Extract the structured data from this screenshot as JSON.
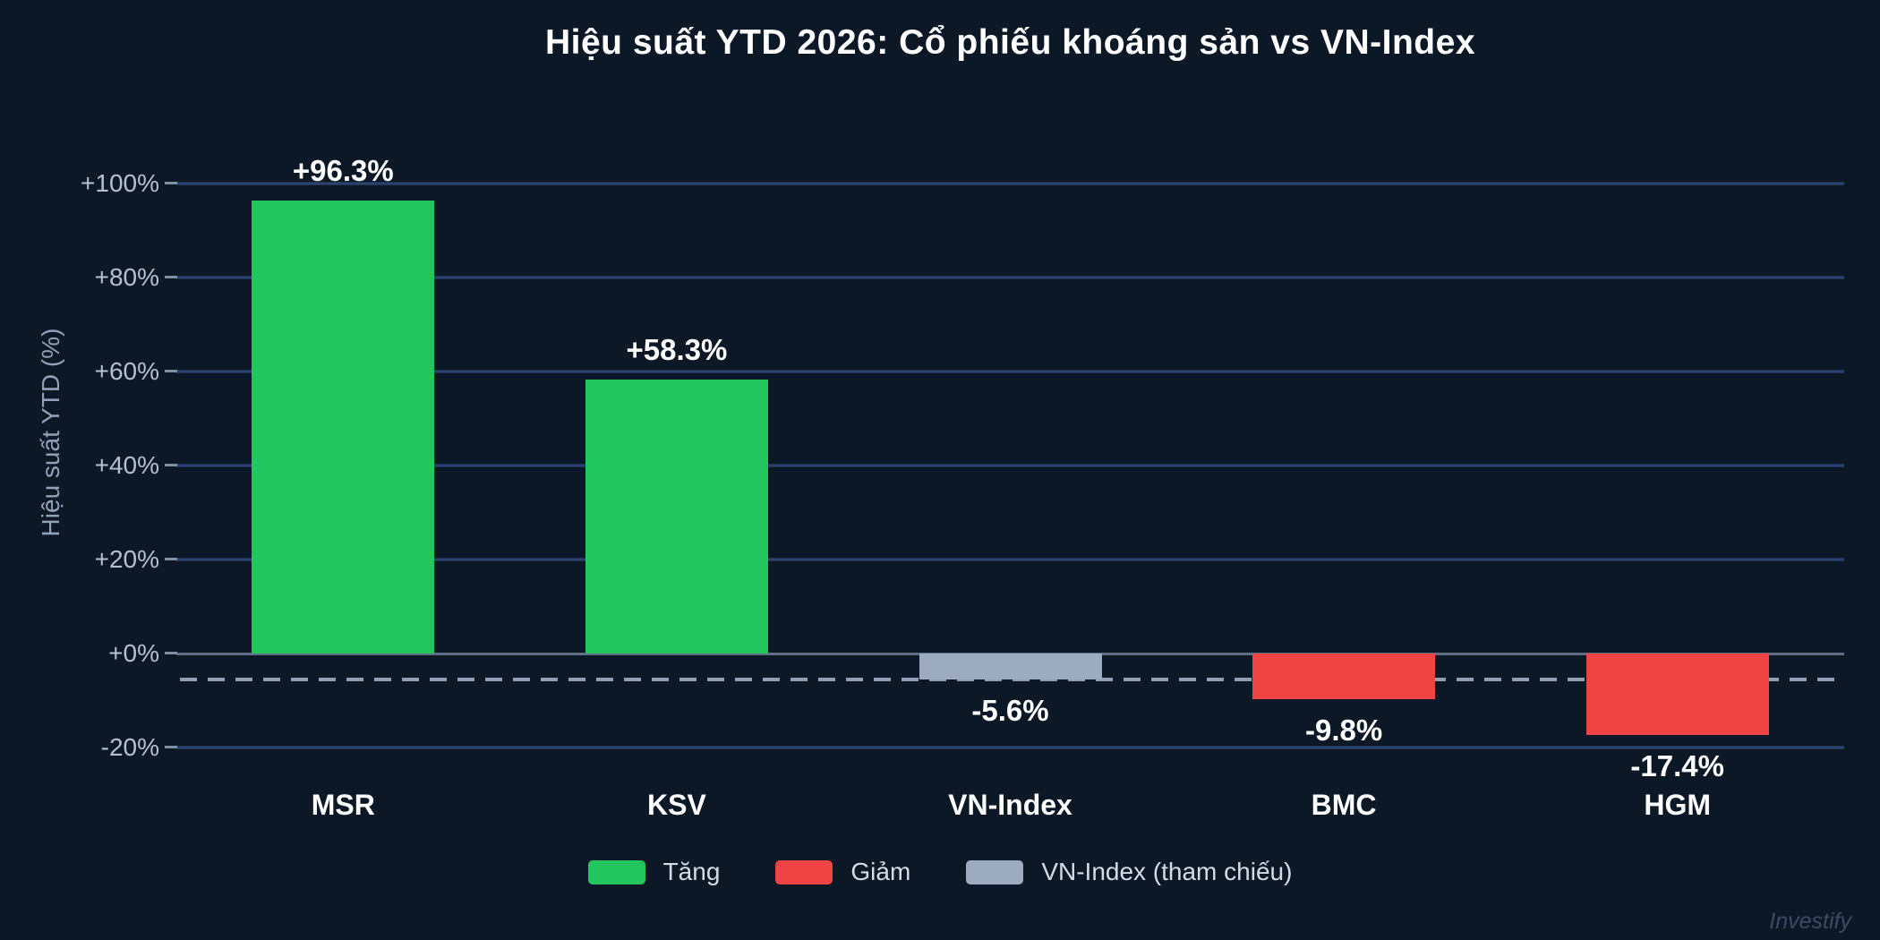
{
  "title": "Hiệu suất YTD 2026: Cổ phiếu khoáng sản vs VN-Index",
  "watermark": "Investify",
  "colors": {
    "background": "#0d1827",
    "up": "#22c55e",
    "down": "#ef4444",
    "reference": "#9dabbf",
    "grid": "#31487a",
    "zero_line": "#5d6e85",
    "dashed_line": "#8fa0b4",
    "tick_text": "#b3c0d4",
    "axis_title_text": "#90a1b8",
    "label_text": "#ffffff",
    "legend_text": "#d3dbe7",
    "watermark_text": "#3b4b61"
  },
  "chart_data": {
    "type": "bar",
    "title": "Hiệu suất YTD 2026: Cổ phiếu khoáng sản vs VN-Index",
    "xlabel": "",
    "ylabel": "Hiệu suất YTD (%)",
    "categories": [
      "MSR",
      "KSV",
      "VN-Index",
      "BMC",
      "HGM"
    ],
    "values": [
      96.3,
      58.3,
      -5.6,
      -9.8,
      -17.4
    ],
    "value_labels": [
      "+96.3%",
      "+58.3%",
      "-5.6%",
      "-9.8%",
      "-17.4%"
    ],
    "bar_roles": [
      "up",
      "up",
      "reference",
      "down",
      "down"
    ],
    "ylim": [
      -28,
      112
    ],
    "yticks": [
      {
        "value": 100,
        "label": "+100%"
      },
      {
        "value": 80,
        "label": "+80%"
      },
      {
        "value": 60,
        "label": "+60%"
      },
      {
        "value": 40,
        "label": "+40%"
      },
      {
        "value": 20,
        "label": "+20%"
      },
      {
        "value": 0,
        "label": "+0%"
      },
      {
        "value": -20,
        "label": "-20%"
      }
    ],
    "reference_line": {
      "value": -5.6,
      "style": "dashed",
      "role": "reference"
    },
    "grid": true,
    "legend_position": "bottom",
    "legend": [
      {
        "label": "Tăng",
        "role": "up"
      },
      {
        "label": "Giảm",
        "role": "down"
      },
      {
        "label": "VN-Index (tham chiếu)",
        "role": "reference"
      }
    ]
  }
}
